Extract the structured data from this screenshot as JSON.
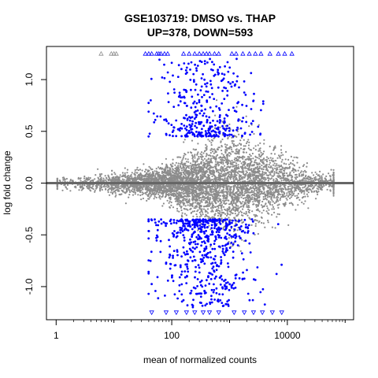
{
  "chart_data": {
    "type": "scatter",
    "title": "GSE103719: DMSO vs. THAP",
    "subtitle": "UP=378, DOWN=593",
    "xlabel": "mean of normalized counts",
    "ylabel": "log fold change",
    "x_scale": "log10",
    "xlim": [
      0.68,
      140000
    ],
    "ylim": [
      -1.32,
      1.32
    ],
    "x_ticks": [
      1,
      100,
      10000
    ],
    "x_tick_labels": [
      "1",
      "100",
      "10000"
    ],
    "y_ticks": [
      -1.0,
      -0.5,
      0.0,
      0.5,
      1.0
    ],
    "y_tick_labels": [
      "-1.0",
      "-0.5",
      "0.0",
      "0.5",
      "1.0"
    ],
    "reference_line": {
      "y": 0,
      "color": "#666666"
    },
    "grid": false,
    "legend": "none",
    "series": [
      {
        "role": "not significant",
        "color": "#8c8c8c",
        "marker": "point"
      },
      {
        "role": "significant",
        "color": "#0000ff",
        "marker": "point"
      },
      {
        "role": "clipped out-of-range (capped at axis limits)",
        "marker": "open-triangle"
      }
    ],
    "clipped_up_points_x": [
      6,
      9,
      10,
      11,
      35,
      40,
      45,
      55,
      60,
      65,
      75,
      85,
      160,
      200,
      250,
      300,
      350,
      400,
      450,
      550,
      650,
      1100,
      1300,
      1700,
      2200,
      2800,
      3500,
      5000,
      7000,
      9000,
      12000
    ],
    "clipped_down_points_x": [
      45,
      80,
      120,
      180,
      250,
      350,
      450,
      650,
      1200,
      1800,
      2600,
      3700,
      5500,
      8000
    ],
    "approx_point_cloud": {
      "gray_band_at_low_counts": {
        "x_range": [
          1,
          50
        ],
        "lfc_spread": 0.05
      },
      "gray_cloud_peak_spread_lfc": 0.3,
      "gray_cloud_peak_x": 1000,
      "blue_up_lfc_range": [
        0.45,
        1.2
      ],
      "blue_down_lfc_range": [
        -1.2,
        -0.35
      ],
      "blue_x_range": [
        30,
        20000
      ]
    }
  }
}
